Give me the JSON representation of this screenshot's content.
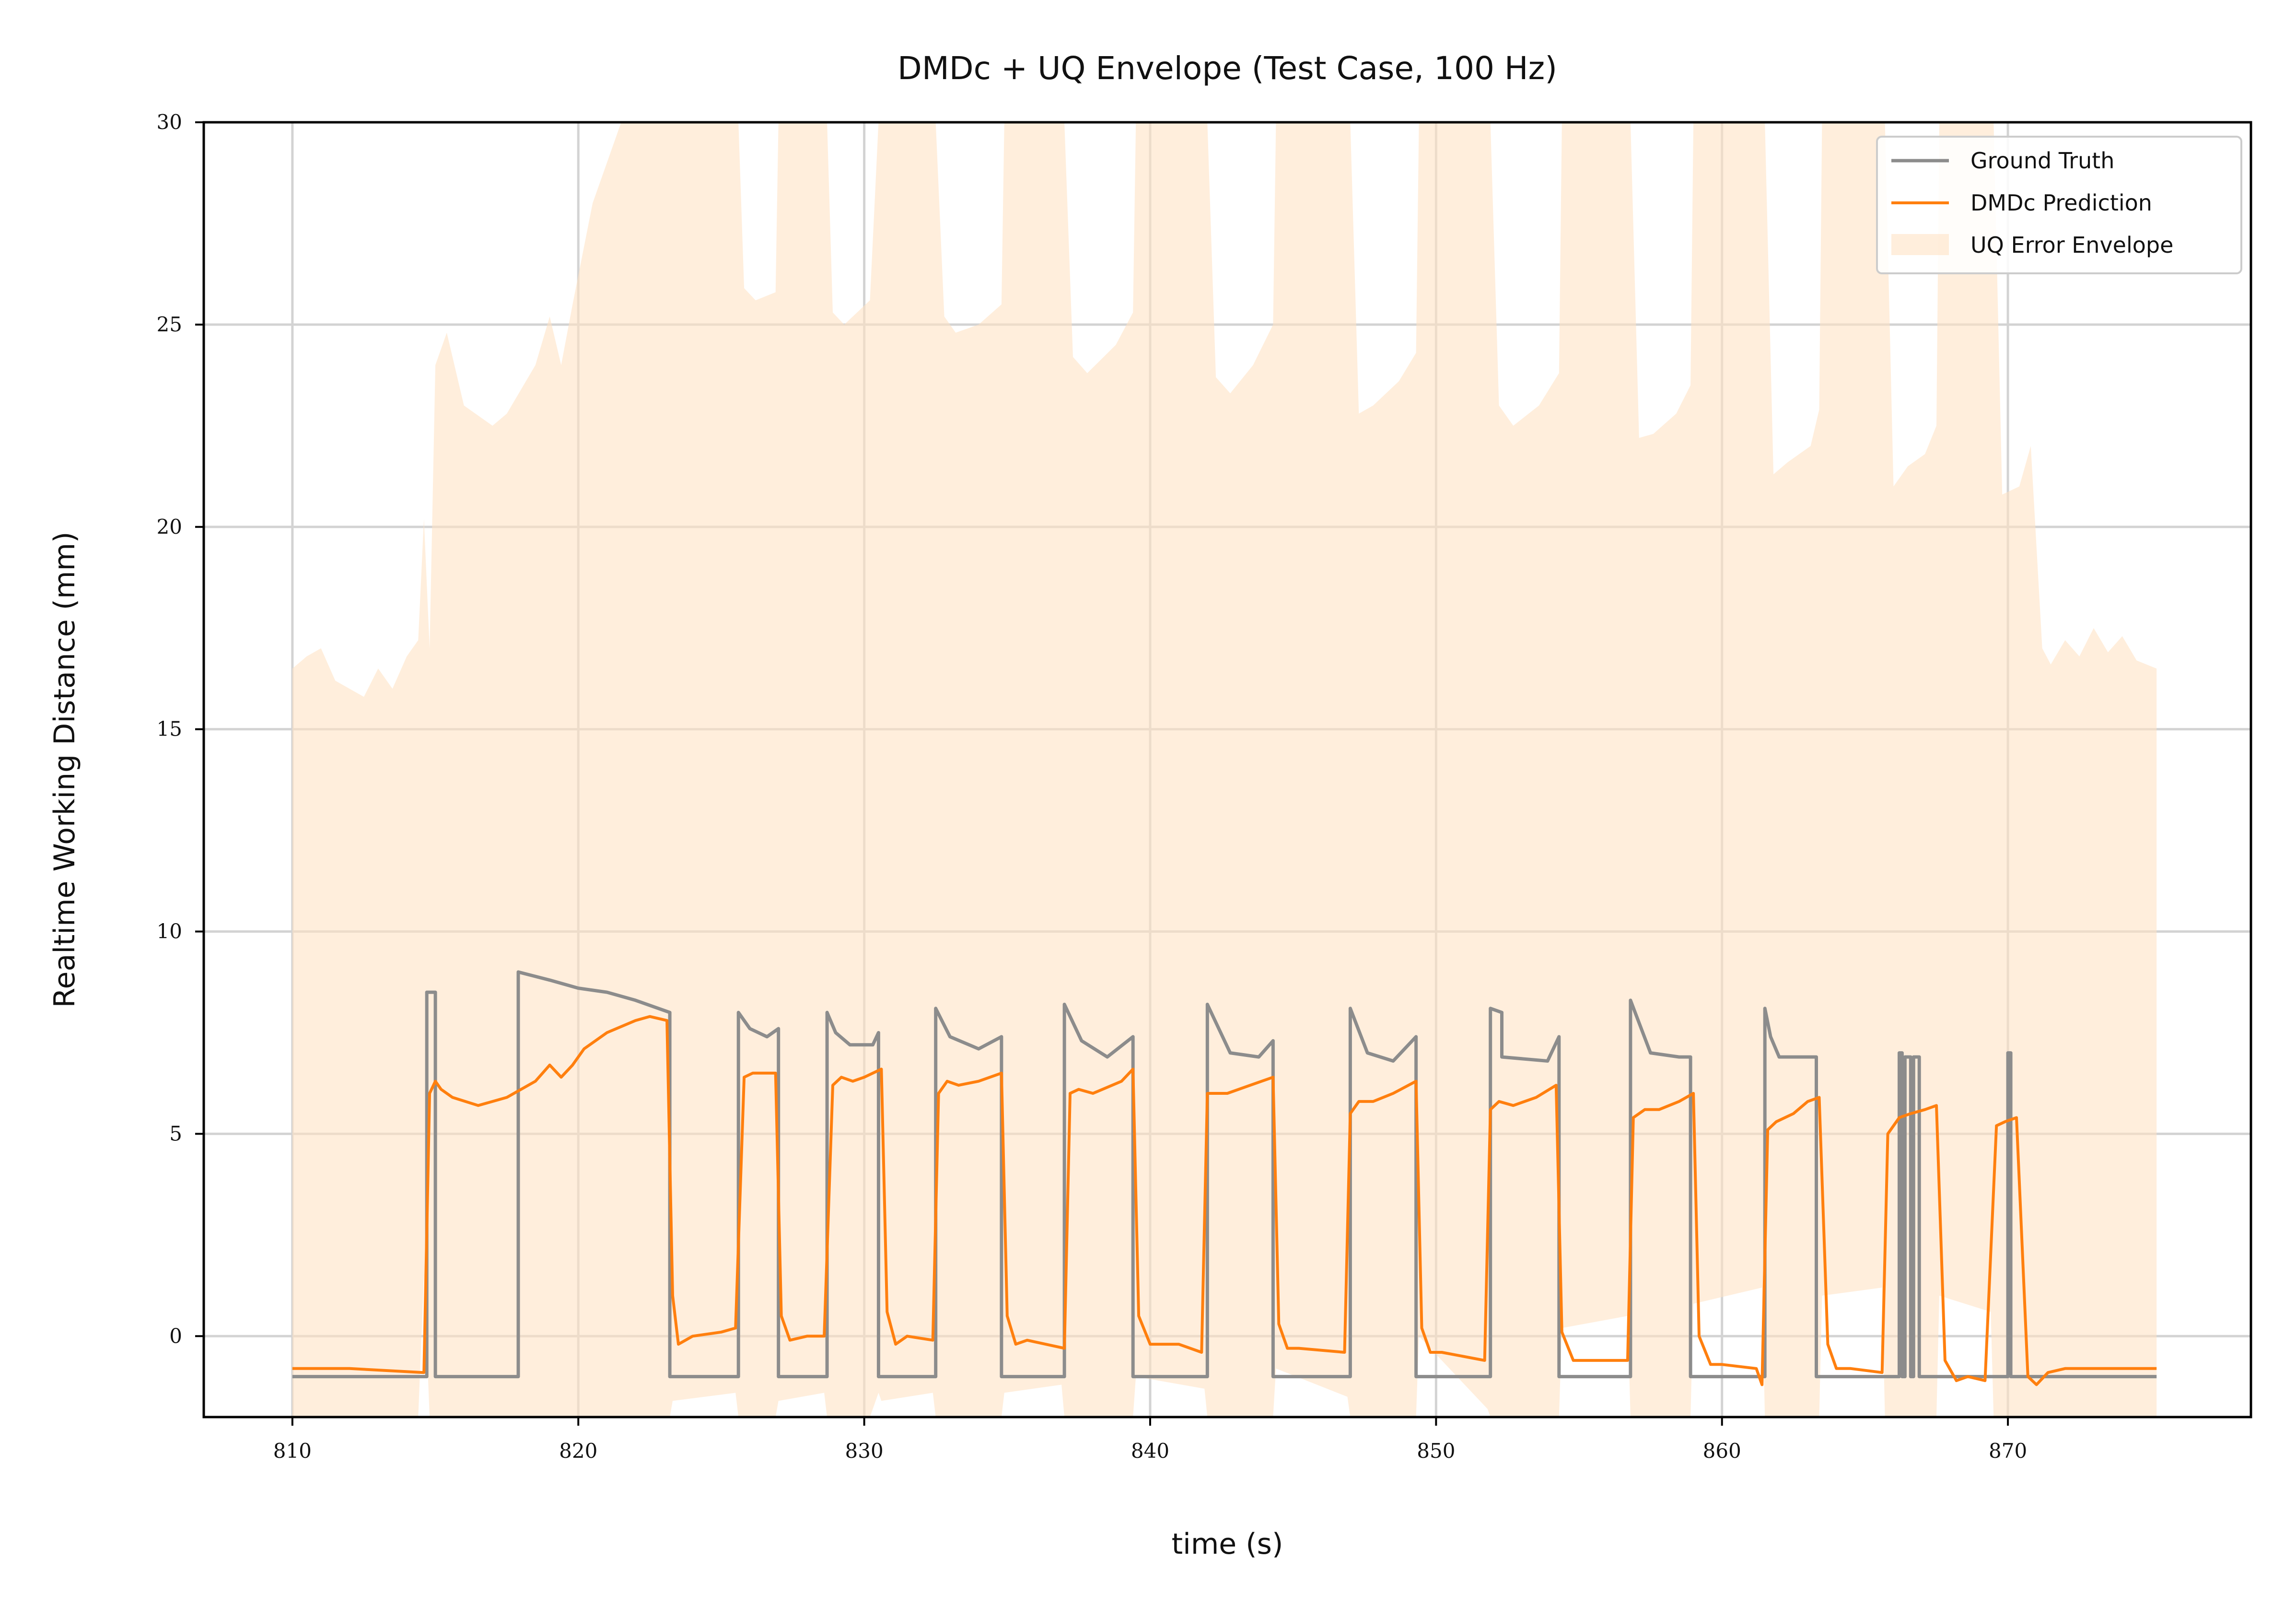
{
  "chart_data": {
    "type": "line",
    "title": "DMDc + UQ Envelope (Test Case, 100 Hz)",
    "xlabel": "time (s)",
    "ylabel": "Realtime Working Distance (mm)",
    "xlim": [
      806.9,
      878.5
    ],
    "ylim": [
      -2.0,
      30.0
    ],
    "xticks": [
      810,
      820,
      830,
      840,
      850,
      860,
      870
    ],
    "yticks": [
      0,
      5,
      10,
      15,
      20,
      25,
      30
    ],
    "grid": true,
    "legend_position": "top-right",
    "legend": [
      "Ground Truth",
      "DMDc Prediction",
      "UQ Error Envelope"
    ],
    "colors": {
      "ground_truth": "#8c8c8c",
      "prediction": "#ff7f0e",
      "envelope": "#ffe2c4"
    },
    "series": [
      {
        "name": "Ground Truth",
        "x": [
          810,
          814.7,
          814.7,
          815.0,
          815.0,
          817.9,
          817.9,
          819,
          820,
          821,
          822,
          823.2,
          823.2,
          825.6,
          825.6,
          826.0,
          826.6,
          827.0,
          827.0,
          828.7,
          828.7,
          829.0,
          829.5,
          830.3,
          830.5,
          830.5,
          832.5,
          832.5,
          833.0,
          834.0,
          834.8,
          834.8,
          837.0,
          837.0,
          837.6,
          838.5,
          839.4,
          839.4,
          842.0,
          842.0,
          842.8,
          843.8,
          844.3,
          844.3,
          847.0,
          847.0,
          847.6,
          848.5,
          849.3,
          849.3,
          851.9,
          851.9,
          852.3,
          852.3,
          853.9,
          854.3,
          854.3,
          856.8,
          856.8,
          857.5,
          858.5,
          858.9,
          858.9,
          861.5,
          861.5,
          861.7,
          862.0,
          863.3,
          863.3,
          866.2,
          866.2,
          866.3,
          866.3,
          866.4,
          866.4,
          866.6,
          866.6,
          866.7,
          866.7,
          866.9,
          866.9,
          870.0,
          870.0,
          870.1,
          870.1,
          875.2
        ],
        "values": [
          -1.0,
          -1.0,
          8.5,
          8.5,
          -1.0,
          -1.0,
          9.0,
          8.8,
          8.6,
          8.5,
          8.3,
          8.0,
          -1.0,
          -1.0,
          8.0,
          7.6,
          7.4,
          7.6,
          -1.0,
          -1.0,
          8.0,
          7.5,
          7.2,
          7.2,
          7.5,
          -1.0,
          -1.0,
          8.1,
          7.4,
          7.1,
          7.4,
          -1.0,
          -1.0,
          8.2,
          7.3,
          6.9,
          7.4,
          -1.0,
          -1.0,
          8.2,
          7.0,
          6.9,
          7.3,
          -1.0,
          -1.0,
          8.1,
          7.0,
          6.8,
          7.4,
          -1.0,
          -1.0,
          8.1,
          8.0,
          6.9,
          6.8,
          7.4,
          -1.0,
          -1.0,
          8.3,
          7.0,
          6.9,
          6.9,
          -1.0,
          -1.0,
          8.1,
          7.4,
          6.9,
          6.9,
          -1.0,
          -1.0,
          7.0,
          7.0,
          -1.0,
          -1.0,
          6.9,
          6.9,
          -1.0,
          -1.0,
          6.9,
          6.9,
          -1.0,
          -1.0,
          7.0,
          7.0,
          -1.0,
          -1.0
        ]
      },
      {
        "name": "DMDc Prediction",
        "x": [
          810,
          812,
          814.6,
          814.8,
          815.0,
          815.2,
          815.6,
          816.5,
          817.5,
          818.5,
          819.0,
          819.4,
          819.8,
          820.2,
          821,
          822,
          822.5,
          823.1,
          823.3,
          823.5,
          824,
          825,
          825.5,
          825.8,
          826.1,
          826.5,
          826.9,
          827.1,
          827.4,
          828.0,
          828.6,
          828.9,
          829.2,
          829.6,
          830.0,
          830.6,
          830.8,
          831.1,
          831.5,
          832.4,
          832.6,
          832.9,
          833.3,
          834.0,
          834.8,
          835.0,
          835.3,
          835.7,
          837.0,
          837.2,
          837.5,
          838.0,
          839.0,
          839.4,
          839.6,
          840.0,
          841.0,
          841.8,
          842.0,
          842.3,
          842.7,
          843.5,
          844.3,
          844.5,
          844.8,
          845.2,
          846.8,
          847.0,
          847.3,
          847.8,
          848.5,
          849.3,
          849.5,
          849.8,
          850.2,
          851.7,
          851.9,
          852.2,
          852.7,
          853.5,
          854.2,
          854.4,
          854.8,
          855.2,
          856.7,
          856.9,
          857.3,
          857.8,
          858.5,
          859.0,
          859.2,
          859.6,
          860.0,
          861.2,
          861.4,
          861.6,
          861.9,
          862.5,
          863.0,
          863.4,
          863.7,
          864.0,
          864.5,
          865.6,
          865.8,
          866.2,
          866.6,
          867.1,
          867.5,
          867.8,
          868.2,
          868.6,
          869.2,
          869.6,
          869.9,
          870.3,
          870.7,
          871.0,
          871.4,
          872,
          873,
          874,
          875.2
        ],
        "values": [
          -0.8,
          -0.8,
          -0.9,
          6.0,
          6.3,
          6.1,
          5.9,
          5.7,
          5.9,
          6.3,
          6.7,
          6.4,
          6.7,
          7.1,
          7.5,
          7.8,
          7.9,
          7.8,
          1.0,
          -0.2,
          0.0,
          0.1,
          0.2,
          6.4,
          6.5,
          6.5,
          6.5,
          0.5,
          -0.1,
          0.0,
          0.0,
          6.2,
          6.4,
          6.3,
          6.4,
          6.6,
          0.6,
          -0.2,
          0.0,
          -0.1,
          6.0,
          6.3,
          6.2,
          6.3,
          6.5,
          0.5,
          -0.2,
          -0.1,
          -0.3,
          6.0,
          6.1,
          6.0,
          6.3,
          6.6,
          0.5,
          -0.2,
          -0.2,
          -0.4,
          6.0,
          6.0,
          6.0,
          6.2,
          6.4,
          0.3,
          -0.3,
          -0.3,
          -0.4,
          5.5,
          5.8,
          5.8,
          6.0,
          6.3,
          0.2,
          -0.4,
          -0.4,
          -0.6,
          5.6,
          5.8,
          5.7,
          5.9,
          6.2,
          0.1,
          -0.6,
          -0.6,
          -0.6,
          5.4,
          5.6,
          5.6,
          5.8,
          6.0,
          0.0,
          -0.7,
          -0.7,
          -0.8,
          -1.2,
          5.1,
          5.3,
          5.5,
          5.8,
          5.9,
          -0.2,
          -0.8,
          -0.8,
          -0.9,
          5.0,
          5.4,
          5.5,
          5.6,
          5.7,
          -0.6,
          -1.1,
          -1.0,
          -1.1,
          5.2,
          5.3,
          5.4,
          -1.0,
          -1.2,
          -0.9,
          -0.8,
          -0.8,
          -0.8,
          -0.8
        ]
      },
      {
        "name": "UQ Error Envelope",
        "x": [
          810,
          810.5,
          811,
          811.5,
          812,
          812.5,
          813,
          813.5,
          814,
          814.4,
          814.6,
          814.8,
          815.0,
          815.4,
          816,
          817,
          817.5,
          818.5,
          819,
          819.4,
          819.8,
          820.5,
          821.5,
          822.5,
          823.2,
          823.3,
          825.5,
          825.6,
          825.8,
          826.2,
          826.9,
          827.0,
          828.6,
          828.7,
          828.9,
          829.3,
          830.2,
          830.5,
          830.6,
          832.4,
          832.5,
          832.8,
          833.2,
          834.0,
          834.8,
          834.9,
          836.9,
          837.0,
          837.3,
          837.8,
          838.8,
          839.4,
          839.5,
          841.9,
          842.0,
          842.3,
          842.8,
          843.6,
          844.3,
          844.4,
          846.9,
          847.0,
          847.3,
          847.8,
          848.7,
          849.3,
          849.4,
          851.8,
          851.9,
          852.2,
          852.7,
          853.6,
          854.3,
          854.4,
          856.7,
          856.8,
          857.1,
          857.6,
          858.4,
          858.9,
          859.0,
          861.4,
          861.5,
          861.8,
          862.3,
          863.1,
          863.4,
          863.5,
          865.6,
          865.7,
          866.0,
          866.5,
          867.1,
          867.5,
          867.6,
          869.4,
          869.5,
          869.8,
          870.4,
          870.8,
          871.2,
          871.5,
          872,
          872.5,
          873,
          873.5,
          874,
          874.5,
          875.2
        ],
        "upper": [
          16.5,
          16.8,
          17.0,
          16.2,
          16.0,
          15.8,
          16.5,
          16.0,
          16.8,
          17.2,
          20.2,
          17.0,
          24.0,
          24.8,
          23.0,
          22.5,
          22.8,
          24.0,
          25.2,
          24.0,
          25.5,
          28.0,
          30.0,
          30.0,
          30.0,
          30.0,
          30.0,
          30.0,
          25.9,
          25.6,
          25.8,
          30.0,
          30.0,
          30.0,
          25.3,
          25.0,
          25.6,
          30.0,
          30.0,
          30.0,
          30.0,
          25.2,
          24.8,
          25.0,
          25.5,
          30.0,
          30.0,
          30.0,
          24.2,
          23.8,
          24.5,
          25.3,
          30.0,
          30.0,
          30.0,
          23.7,
          23.3,
          24.0,
          25.0,
          30.0,
          30.0,
          30.0,
          22.8,
          23.0,
          23.6,
          24.3,
          30.0,
          30.0,
          30.0,
          23.0,
          22.5,
          23.0,
          23.8,
          30.0,
          30.0,
          30.0,
          22.2,
          22.3,
          22.8,
          23.5,
          30.0,
          30.0,
          30.0,
          21.3,
          21.6,
          22.0,
          22.9,
          30.0,
          30.0,
          30.0,
          21.0,
          21.5,
          21.8,
          22.5,
          30.0,
          30.0,
          30.0,
          20.8,
          21.0,
          22.0,
          17.0,
          16.6,
          17.2,
          16.8,
          17.5,
          16.9,
          17.3,
          16.7,
          16.5
        ],
        "lower": [
          -2.0,
          -2.0,
          -2.0,
          -2.0,
          -2.0,
          -2.0,
          -2.0,
          -2.0,
          -2.0,
          -2.0,
          1.5,
          -2.0,
          -2.0,
          -2.0,
          -2.0,
          -2.0,
          -2.0,
          -2.0,
          -2.0,
          -2.0,
          -2.0,
          -2.0,
          -2.0,
          -2.0,
          -2.0,
          -1.6,
          -1.4,
          -2.0,
          -2.0,
          -2.0,
          -2.0,
          -1.6,
          -1.4,
          -2.0,
          -2.0,
          -2.0,
          -2.0,
          -1.4,
          -1.6,
          -1.4,
          -2.0,
          -2.0,
          -2.0,
          -2.0,
          -2.0,
          -1.4,
          -1.2,
          -2.0,
          -2.0,
          -2.0,
          -2.0,
          -2.0,
          -1.0,
          -1.3,
          -2.0,
          -2.0,
          -2.0,
          -2.0,
          -2.0,
          -0.8,
          -1.5,
          -2.0,
          -2.0,
          -2.0,
          -2.0,
          -2.0,
          0.0,
          -1.8,
          -2.0,
          -2.0,
          -2.0,
          -2.0,
          -2.0,
          0.2,
          0.5,
          -2.0,
          -2.0,
          -2.0,
          -2.0,
          -2.0,
          0.8,
          1.2,
          -2.0,
          -2.0,
          -2.0,
          -2.0,
          -2.0,
          1.0,
          1.2,
          -2.0,
          -2.0,
          -2.0,
          -2.0,
          -2.0,
          1.0,
          0.6,
          -2.0,
          -2.0,
          -2.0,
          -2.0,
          -2.0,
          -2.0,
          -2.0,
          -2.0,
          -2.0,
          -2.0,
          -2.0,
          -2.0,
          -2.0
        ]
      }
    ]
  }
}
